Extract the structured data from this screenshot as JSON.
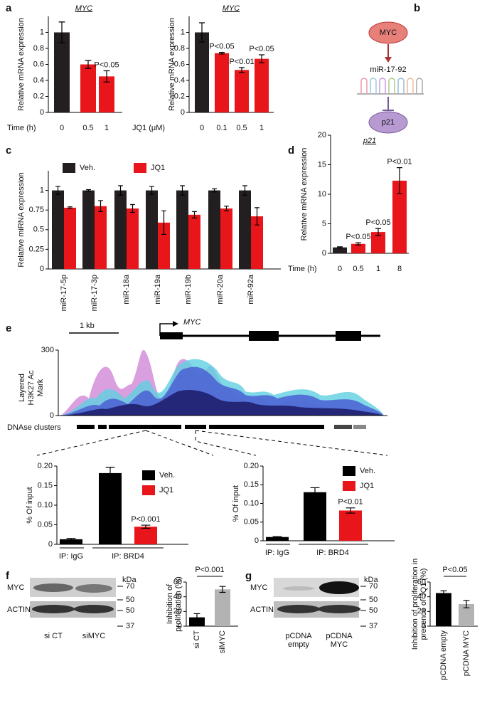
{
  "panels": [
    "a",
    "b",
    "c",
    "d",
    "e",
    "f",
    "g"
  ],
  "diagram": {
    "nodes": [
      "MYC",
      "miR-17-92",
      "p21"
    ]
  },
  "genome": {
    "scale_label": "1 kb",
    "gene": "MYC",
    "track_label": "Layered H3K27 Ac Mark",
    "ylim": [
      0,
      300
    ],
    "yticks": [
      0,
      300
    ],
    "dnase_label": "DNAse clusters"
  },
  "blots": [
    {
      "unit": "kDa",
      "rows": [
        "MYC",
        "ACTIN"
      ],
      "markers": [
        [
          70,
          50
        ],
        [
          50,
          37
        ]
      ],
      "lanes": [
        "si CT",
        "siMYC"
      ]
    },
    {
      "unit": "kDa",
      "rows": [
        "MYC",
        "ACTIN"
      ],
      "markers": [
        [
          70,
          50
        ],
        [
          50,
          37
        ]
      ],
      "lanes": [
        "pCDNA empty",
        "pCDNA MYC"
      ]
    }
  ],
  "chart_data": [
    {
      "type": "bar",
      "title": "MYC",
      "ylabel": "Relative mRNA expression",
      "xlabel": "Time (h)",
      "categories": [
        "0",
        "0.5",
        "1"
      ],
      "series": [
        {
          "colors": [
            "#231f20",
            "#e8161b",
            "#e8161b"
          ],
          "values": [
            1,
            0.6,
            0.45
          ],
          "errors": [
            0.13,
            0.05,
            0.07
          ],
          "notes": [
            null,
            null,
            "P<0.05"
          ]
        }
      ],
      "ylim": [
        0,
        1.2
      ],
      "yticks": [
        0,
        0.2,
        0.4,
        0.6,
        0.8,
        1
      ]
    },
    {
      "type": "bar",
      "title": "MYC",
      "ylabel": "Relative mRNA expression",
      "xlabel": "JQ1 (μM)",
      "categories": [
        "0",
        "0.1",
        "0.5",
        "1"
      ],
      "series": [
        {
          "colors": [
            "#231f20",
            "#e8161b",
            "#e8161b",
            "#e8161b"
          ],
          "values": [
            1,
            0.74,
            0.53,
            0.67
          ],
          "errors": [
            0.12,
            0.01,
            0.03,
            0.05
          ],
          "notes": [
            null,
            "P<0.05",
            "P<0.01",
            "P<0.05"
          ]
        }
      ],
      "ylim": [
        0,
        1.2
      ],
      "yticks": [
        0,
        0.2,
        0.4,
        0.6,
        0.8,
        1
      ]
    },
    {
      "type": "bar",
      "ylabel": "Relative miRNA expression",
      "categories": [
        "miR-17-5p",
        "miR-17-3p",
        "miR-18a",
        "miR-19a",
        "miR-19b",
        "miR-20a",
        "miR-92a"
      ],
      "series": [
        {
          "name": "Veh.",
          "color": "#231f20",
          "values": [
            1,
            1,
            1,
            1,
            1,
            1,
            1
          ],
          "errors": [
            0.05,
            0.01,
            0.06,
            0.05,
            0.06,
            0.02,
            0.06
          ]
        },
        {
          "name": "JQ1",
          "color": "#e8161b",
          "values": [
            0.78,
            0.8,
            0.77,
            0.59,
            0.69,
            0.77,
            0.67
          ],
          "errors": [
            0.01,
            0.07,
            0.05,
            0.15,
            0.04,
            0.03,
            0.11
          ]
        }
      ],
      "ylim": [
        0,
        1.25
      ],
      "yticks": [
        0,
        0.25,
        0.5,
        0.75,
        1
      ],
      "legend": "top-left"
    },
    {
      "type": "bar",
      "title": "p21",
      "ylabel": "Relative mRNA expression",
      "xlabel": "Time (h)",
      "categories": [
        "0",
        "0.5",
        "1",
        "8"
      ],
      "series": [
        {
          "colors": [
            "#231f20",
            "#e8161b",
            "#e8161b",
            "#e8161b"
          ],
          "values": [
            1,
            1.6,
            3.6,
            12.3
          ],
          "errors": [
            0.1,
            0.2,
            0.6,
            2.2
          ],
          "notes": [
            null,
            "P<0.05",
            "P<0.05",
            "P<0.01"
          ]
        }
      ],
      "ylim": [
        0,
        20
      ],
      "yticks": [
        0,
        5,
        10,
        15,
        20
      ]
    },
    {
      "type": "bar",
      "ylabel": "% Of input",
      "categories": [
        "IP: IgG",
        "IP: BRD4"
      ],
      "series": [
        {
          "name": "Veh.",
          "color": "#000000",
          "values": [
            0.013,
            0.182
          ],
          "errors": [
            0.002,
            0.015
          ]
        },
        {
          "name": "JQ1",
          "color": "#e8161b",
          "values": [
            null,
            0.045
          ],
          "errors": [
            null,
            0.004
          ],
          "notes": [
            null,
            "P<0.001"
          ]
        }
      ],
      "ylim": [
        0,
        0.2
      ],
      "yticks": [
        0,
        0.05,
        {
          "value": 0.1,
          "label": "0.10"
        },
        0.15,
        {
          "value": 0.2,
          "label": "0.20"
        }
      ],
      "legend": "top-right"
    },
    {
      "type": "bar",
      "ylabel": "% Of input",
      "categories": [
        "IP: IgG",
        "IP: BRD4"
      ],
      "series": [
        {
          "name": "Veh.",
          "color": "#000000",
          "values": [
            0.01,
            0.13
          ],
          "errors": [
            0.001,
            0.012
          ]
        },
        {
          "name": "JQ1",
          "color": "#e8161b",
          "values": [
            null,
            0.081
          ],
          "errors": [
            null,
            0.007
          ],
          "notes": [
            null,
            "P<0.01"
          ]
        }
      ],
      "ylim": [
        0,
        0.2
      ],
      "yticks": [
        0,
        0.05,
        {
          "value": 0.1,
          "label": "0.10"
        },
        0.15,
        {
          "value": 0.2,
          "label": "0.20"
        }
      ],
      "legend": "top-right"
    },
    {
      "type": "bar",
      "ylabel": "Inhibition of proliferation (%)",
      "categories": [
        "si CT",
        "siMYC"
      ],
      "series": [
        {
          "colors": [
            "#000000",
            "#b3b3b3"
          ],
          "values": [
            12,
            50
          ],
          "errors": [
            5,
            4
          ]
        }
      ],
      "significance": "P<0.001",
      "ylim": [
        0,
        60
      ],
      "yticks": [
        0,
        20,
        40,
        60
      ]
    },
    {
      "type": "bar",
      "ylabel": "Inhibition of proliferation in presence of JQ1 (%)",
      "categories": [
        "pCDNA empty",
        "pCDNA MYC"
      ],
      "series": [
        {
          "colors": [
            "#000000",
            "#b3b3b3"
          ],
          "values": [
            45,
            30
          ],
          "errors": [
            3,
            5
          ]
        }
      ],
      "significance": "P<0.05",
      "ylim": [
        0,
        60
      ],
      "yticks": [
        0,
        20,
        40,
        60
      ]
    }
  ]
}
